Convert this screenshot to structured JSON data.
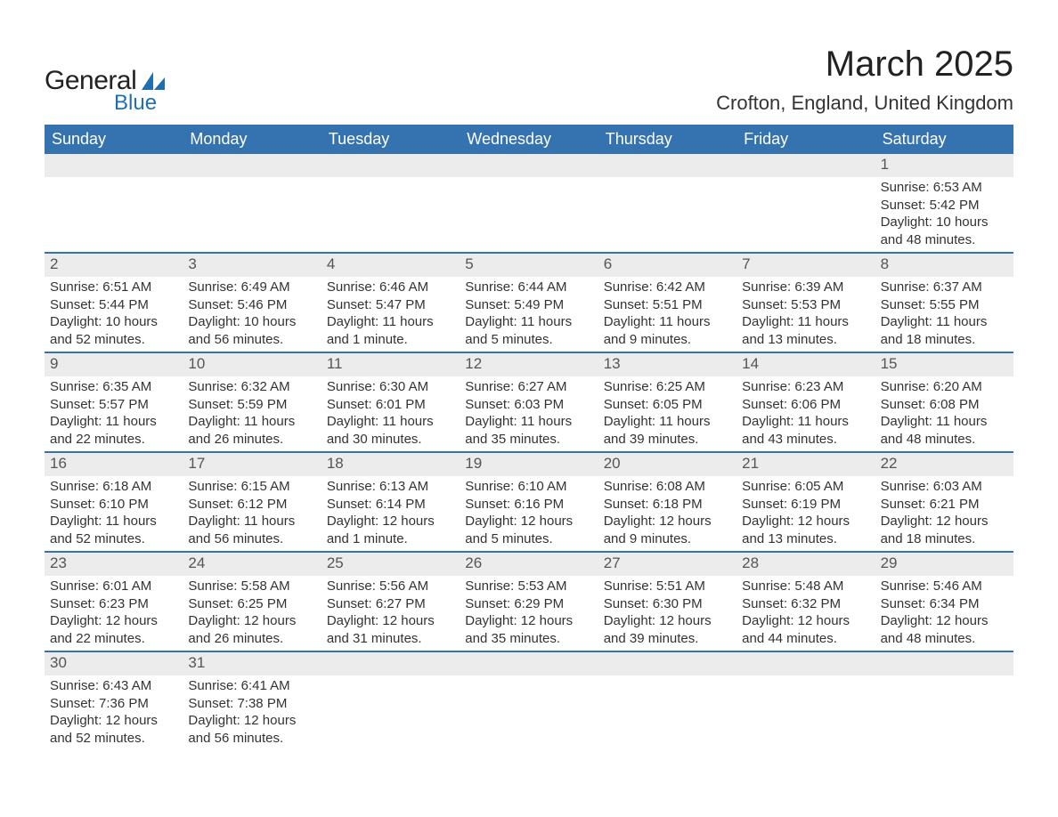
{
  "brand": {
    "general": "General",
    "blue": "Blue",
    "sail_color": "#1f6fb2"
  },
  "header": {
    "month_title": "March 2025",
    "location": "Crofton, England, United Kingdom"
  },
  "colors": {
    "header_bg": "#3572b0",
    "header_text": "#ffffff",
    "band_bg": "#ececec",
    "band_text": "#555555",
    "body_text": "#333333",
    "week_border": "#3572b0"
  },
  "typography": {
    "month_title_fontsize": 40,
    "location_fontsize": 22,
    "day_header_fontsize": 18,
    "daynum_fontsize": 17,
    "body_fontsize": 15
  },
  "day_names": [
    "Sunday",
    "Monday",
    "Tuesday",
    "Wednesday",
    "Thursday",
    "Friday",
    "Saturday"
  ],
  "labels": {
    "sunrise": "Sunrise:",
    "sunset": "Sunset:",
    "daylight": "Daylight:"
  },
  "weeks": [
    [
      null,
      null,
      null,
      null,
      null,
      null,
      {
        "n": "1",
        "sunrise": "6:53 AM",
        "sunset": "5:42 PM",
        "daylight_l1": "10 hours",
        "daylight_l2": "and 48 minutes."
      }
    ],
    [
      {
        "n": "2",
        "sunrise": "6:51 AM",
        "sunset": "5:44 PM",
        "daylight_l1": "10 hours",
        "daylight_l2": "and 52 minutes."
      },
      {
        "n": "3",
        "sunrise": "6:49 AM",
        "sunset": "5:46 PM",
        "daylight_l1": "10 hours",
        "daylight_l2": "and 56 minutes."
      },
      {
        "n": "4",
        "sunrise": "6:46 AM",
        "sunset": "5:47 PM",
        "daylight_l1": "11 hours",
        "daylight_l2": "and 1 minute."
      },
      {
        "n": "5",
        "sunrise": "6:44 AM",
        "sunset": "5:49 PM",
        "daylight_l1": "11 hours",
        "daylight_l2": "and 5 minutes."
      },
      {
        "n": "6",
        "sunrise": "6:42 AM",
        "sunset": "5:51 PM",
        "daylight_l1": "11 hours",
        "daylight_l2": "and 9 minutes."
      },
      {
        "n": "7",
        "sunrise": "6:39 AM",
        "sunset": "5:53 PM",
        "daylight_l1": "11 hours",
        "daylight_l2": "and 13 minutes."
      },
      {
        "n": "8",
        "sunrise": "6:37 AM",
        "sunset": "5:55 PM",
        "daylight_l1": "11 hours",
        "daylight_l2": "and 18 minutes."
      }
    ],
    [
      {
        "n": "9",
        "sunrise": "6:35 AM",
        "sunset": "5:57 PM",
        "daylight_l1": "11 hours",
        "daylight_l2": "and 22 minutes."
      },
      {
        "n": "10",
        "sunrise": "6:32 AM",
        "sunset": "5:59 PM",
        "daylight_l1": "11 hours",
        "daylight_l2": "and 26 minutes."
      },
      {
        "n": "11",
        "sunrise": "6:30 AM",
        "sunset": "6:01 PM",
        "daylight_l1": "11 hours",
        "daylight_l2": "and 30 minutes."
      },
      {
        "n": "12",
        "sunrise": "6:27 AM",
        "sunset": "6:03 PM",
        "daylight_l1": "11 hours",
        "daylight_l2": "and 35 minutes."
      },
      {
        "n": "13",
        "sunrise": "6:25 AM",
        "sunset": "6:05 PM",
        "daylight_l1": "11 hours",
        "daylight_l2": "and 39 minutes."
      },
      {
        "n": "14",
        "sunrise": "6:23 AM",
        "sunset": "6:06 PM",
        "daylight_l1": "11 hours",
        "daylight_l2": "and 43 minutes."
      },
      {
        "n": "15",
        "sunrise": "6:20 AM",
        "sunset": "6:08 PM",
        "daylight_l1": "11 hours",
        "daylight_l2": "and 48 minutes."
      }
    ],
    [
      {
        "n": "16",
        "sunrise": "6:18 AM",
        "sunset": "6:10 PM",
        "daylight_l1": "11 hours",
        "daylight_l2": "and 52 minutes."
      },
      {
        "n": "17",
        "sunrise": "6:15 AM",
        "sunset": "6:12 PM",
        "daylight_l1": "11 hours",
        "daylight_l2": "and 56 minutes."
      },
      {
        "n": "18",
        "sunrise": "6:13 AM",
        "sunset": "6:14 PM",
        "daylight_l1": "12 hours",
        "daylight_l2": "and 1 minute."
      },
      {
        "n": "19",
        "sunrise": "6:10 AM",
        "sunset": "6:16 PM",
        "daylight_l1": "12 hours",
        "daylight_l2": "and 5 minutes."
      },
      {
        "n": "20",
        "sunrise": "6:08 AM",
        "sunset": "6:18 PM",
        "daylight_l1": "12 hours",
        "daylight_l2": "and 9 minutes."
      },
      {
        "n": "21",
        "sunrise": "6:05 AM",
        "sunset": "6:19 PM",
        "daylight_l1": "12 hours",
        "daylight_l2": "and 13 minutes."
      },
      {
        "n": "22",
        "sunrise": "6:03 AM",
        "sunset": "6:21 PM",
        "daylight_l1": "12 hours",
        "daylight_l2": "and 18 minutes."
      }
    ],
    [
      {
        "n": "23",
        "sunrise": "6:01 AM",
        "sunset": "6:23 PM",
        "daylight_l1": "12 hours",
        "daylight_l2": "and 22 minutes."
      },
      {
        "n": "24",
        "sunrise": "5:58 AM",
        "sunset": "6:25 PM",
        "daylight_l1": "12 hours",
        "daylight_l2": "and 26 minutes."
      },
      {
        "n": "25",
        "sunrise": "5:56 AM",
        "sunset": "6:27 PM",
        "daylight_l1": "12 hours",
        "daylight_l2": "and 31 minutes."
      },
      {
        "n": "26",
        "sunrise": "5:53 AM",
        "sunset": "6:29 PM",
        "daylight_l1": "12 hours",
        "daylight_l2": "and 35 minutes."
      },
      {
        "n": "27",
        "sunrise": "5:51 AM",
        "sunset": "6:30 PM",
        "daylight_l1": "12 hours",
        "daylight_l2": "and 39 minutes."
      },
      {
        "n": "28",
        "sunrise": "5:48 AM",
        "sunset": "6:32 PM",
        "daylight_l1": "12 hours",
        "daylight_l2": "and 44 minutes."
      },
      {
        "n": "29",
        "sunrise": "5:46 AM",
        "sunset": "6:34 PM",
        "daylight_l1": "12 hours",
        "daylight_l2": "and 48 minutes."
      }
    ],
    [
      {
        "n": "30",
        "sunrise": "6:43 AM",
        "sunset": "7:36 PM",
        "daylight_l1": "12 hours",
        "daylight_l2": "and 52 minutes."
      },
      {
        "n": "31",
        "sunrise": "6:41 AM",
        "sunset": "7:38 PM",
        "daylight_l1": "12 hours",
        "daylight_l2": "and 56 minutes."
      },
      null,
      null,
      null,
      null,
      null
    ]
  ]
}
